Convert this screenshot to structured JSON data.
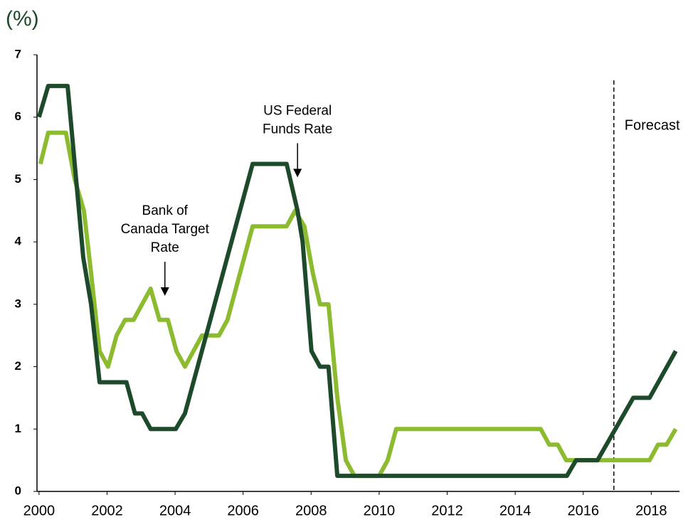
{
  "chart_data": {
    "type": "line",
    "y_label": "(%)",
    "xlim": [
      1999.94,
      2018.83
    ],
    "xticks": [
      2000,
      2002,
      2004,
      2006,
      2008,
      2010,
      2012,
      2014,
      2016,
      2018
    ],
    "ylim": [
      0,
      7
    ],
    "yticks": [
      0,
      1,
      2,
      3,
      4,
      5,
      6,
      7
    ],
    "forecast": {
      "label": "Forecast",
      "x": 2016.9
    },
    "annotations": [
      {
        "lines": [
          "Bank of",
          "Canada Target",
          "Rate"
        ],
        "x": 2003.7,
        "y": 3.5
      },
      {
        "lines": [
          "US Federal",
          "Funds Rate"
        ],
        "x": 2007.6,
        "y": 5.4
      }
    ],
    "series": [
      {
        "name": "US Federal Funds Rate",
        "color": "#1d4a2a",
        "x": [
          2000.0,
          2000.27,
          2000.84,
          2001.3,
          2001.53,
          2001.78,
          2002.57,
          2002.82,
          2003.03,
          2003.28,
          2004.02,
          2004.29,
          2006.28,
          2007.28,
          2007.6,
          2007.75,
          2008.01,
          2008.26,
          2008.51,
          2008.77,
          2015.52,
          2015.79,
          2016.42,
          2017.47,
          2017.95,
          2018.72
        ],
        "values": [
          6.0,
          6.5,
          6.5,
          3.75,
          3.0,
          1.75,
          1.75,
          1.25,
          1.25,
          1.0,
          1.0,
          1.25,
          5.25,
          5.25,
          4.5,
          4.0,
          2.25,
          2.0,
          2.0,
          0.25,
          0.25,
          0.5,
          0.5,
          1.5,
          1.5,
          2.25
        ]
      },
      {
        "name": "Bank of Canada Target Rate",
        "color": "#8dbb2f",
        "x": [
          2000.04,
          2000.27,
          2000.79,
          2001.05,
          2001.32,
          2001.53,
          2001.78,
          2002.03,
          2002.28,
          2002.53,
          2002.78,
          2003.28,
          2003.54,
          2003.79,
          2004.04,
          2004.29,
          2004.79,
          2005.29,
          2005.54,
          2006.28,
          2007.28,
          2007.53,
          2007.8,
          2008.05,
          2008.26,
          2008.51,
          2008.77,
          2009.02,
          2009.27,
          2010.0,
          2010.25,
          2010.5,
          2014.75,
          2015.0,
          2015.25,
          2015.5,
          2017.95,
          2018.2,
          2018.45,
          2018.72
        ],
        "values": [
          5.25,
          5.75,
          5.75,
          5.0,
          4.5,
          3.5,
          2.25,
          2.0,
          2.5,
          2.75,
          2.75,
          3.25,
          2.75,
          2.75,
          2.25,
          2.0,
          2.5,
          2.5,
          2.75,
          4.25,
          4.25,
          4.5,
          4.25,
          3.5,
          3.0,
          3.0,
          1.5,
          0.5,
          0.25,
          0.25,
          0.5,
          1.0,
          1.0,
          0.75,
          0.75,
          0.5,
          0.5,
          0.75,
          0.75,
          1.0
        ]
      }
    ]
  }
}
